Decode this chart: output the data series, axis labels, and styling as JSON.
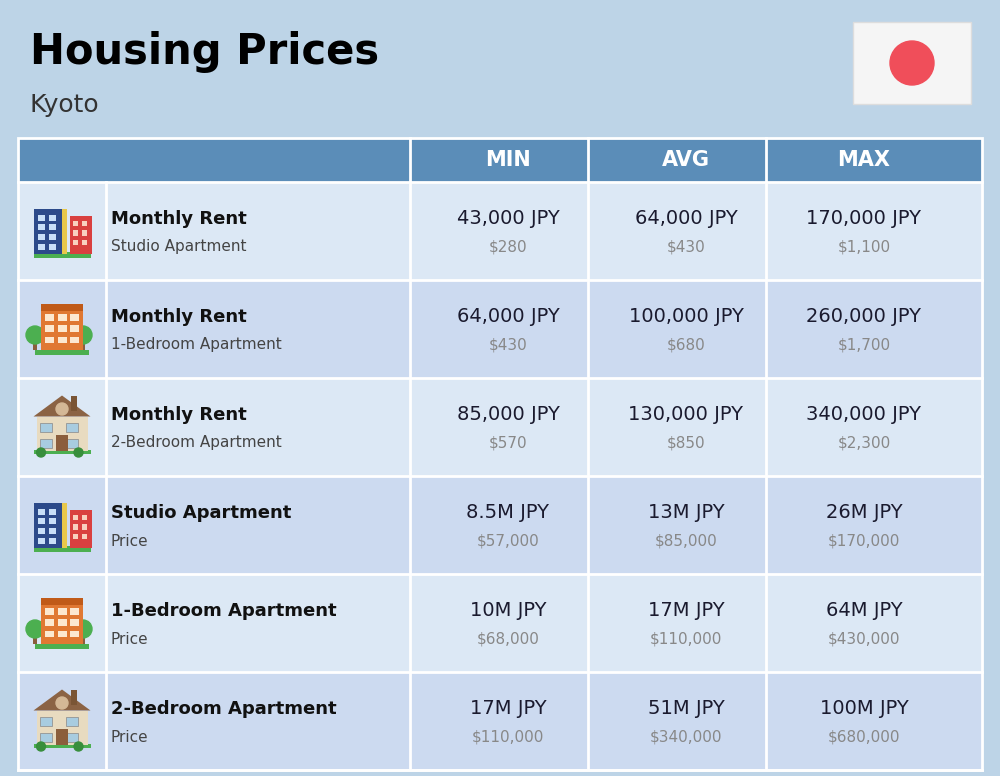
{
  "title": "Housing Prices",
  "subtitle": "Kyoto",
  "bg_color": "#bdd4e7",
  "header_color": "#5b8db8",
  "row_colors": [
    "#dce8f5",
    "#ccdaf0"
  ],
  "divider_color": "#ffffff",
  "flag_bg": "#f5f5f5",
  "flag_circle": "#f04e5a",
  "col_header_text": "#ffffff",
  "cell_jpy_color": "#1a1a2e",
  "cell_usd_color": "#888888",
  "label_bold_color": "#111111",
  "label_sub_color": "#444444",
  "columns": [
    "MIN",
    "AVG",
    "MAX"
  ],
  "rows": [
    {
      "bold_label": "Monthly Rent",
      "sub_label": "Studio Apartment",
      "min_jpy": "43,000 JPY",
      "min_usd": "$280",
      "avg_jpy": "64,000 JPY",
      "avg_usd": "$430",
      "max_jpy": "170,000 JPY",
      "max_usd": "$1,100",
      "icon": "studio_blue"
    },
    {
      "bold_label": "Monthly Rent",
      "sub_label": "1-Bedroom Apartment",
      "min_jpy": "64,000 JPY",
      "min_usd": "$430",
      "avg_jpy": "100,000 JPY",
      "avg_usd": "$680",
      "max_jpy": "260,000 JPY",
      "max_usd": "$1,700",
      "icon": "apt_orange"
    },
    {
      "bold_label": "Monthly Rent",
      "sub_label": "2-Bedroom Apartment",
      "min_jpy": "85,000 JPY",
      "min_usd": "$570",
      "avg_jpy": "130,000 JPY",
      "avg_usd": "$850",
      "max_jpy": "340,000 JPY",
      "max_usd": "$2,300",
      "icon": "house_tan"
    },
    {
      "bold_label": "Studio Apartment",
      "sub_label": "Price",
      "min_jpy": "8.5M JPY",
      "min_usd": "$57,000",
      "avg_jpy": "13M JPY",
      "avg_usd": "$85,000",
      "max_jpy": "26M JPY",
      "max_usd": "$170,000",
      "icon": "studio_blue"
    },
    {
      "bold_label": "1-Bedroom Apartment",
      "sub_label": "Price",
      "min_jpy": "10M JPY",
      "min_usd": "$68,000",
      "avg_jpy": "17M JPY",
      "avg_usd": "$110,000",
      "max_jpy": "64M JPY",
      "max_usd": "$430,000",
      "icon": "apt_orange"
    },
    {
      "bold_label": "2-Bedroom Apartment",
      "sub_label": "Price",
      "min_jpy": "17M JPY",
      "min_usd": "$110,000",
      "avg_jpy": "51M JPY",
      "avg_usd": "$340,000",
      "max_jpy": "100M JPY",
      "max_usd": "$680,000",
      "icon": "house_tan"
    }
  ],
  "title_fontsize": 30,
  "subtitle_fontsize": 18,
  "header_fontsize": 15,
  "jpy_fontsize": 14,
  "usd_fontsize": 11,
  "label_bold_fontsize": 13,
  "label_sub_fontsize": 11
}
